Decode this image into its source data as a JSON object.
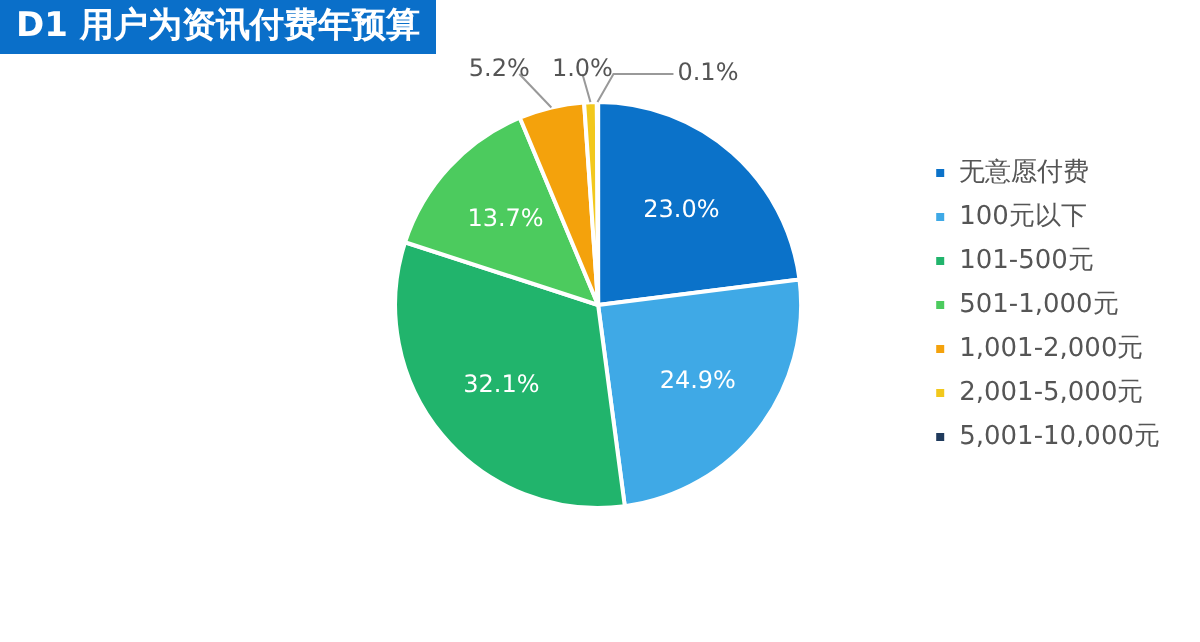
{
  "chart_data": {
    "type": "pie",
    "title": "D1 用户为资讯付费年预算",
    "categories": [
      "无意愿付费",
      "100元以下",
      "101-500元",
      "501-1,000元",
      "1,001-2,000元",
      "2,001-5,000元",
      "5,001-10,000元"
    ],
    "values": [
      23.0,
      24.9,
      32.1,
      13.7,
      5.2,
      1.0,
      0.1
    ],
    "value_labels": [
      "23.0%",
      "24.9%",
      "32.1%",
      "13.7%",
      "5.2%",
      "1.0%",
      "0.1%"
    ],
    "colors": [
      "#0b72c9",
      "#3fa9e6",
      "#21b46c",
      "#4ccb5e",
      "#f4a20c",
      "#f2c81c",
      "#1f3a5c"
    ],
    "legend": "right"
  }
}
